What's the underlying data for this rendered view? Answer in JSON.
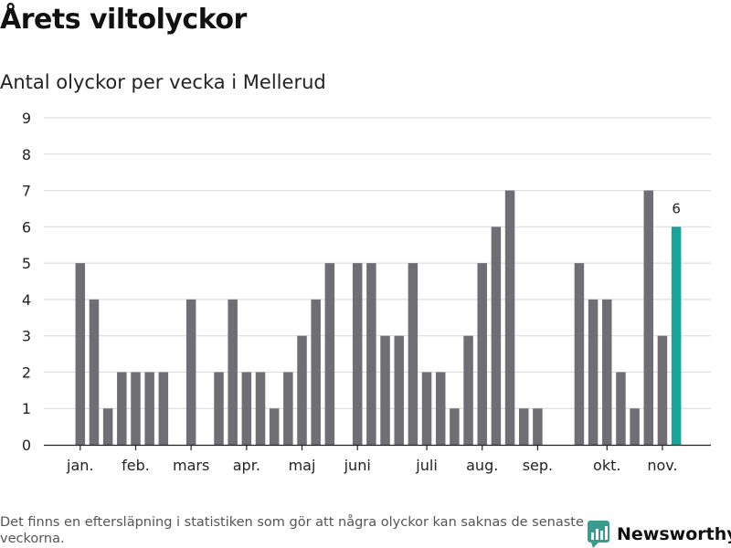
{
  "title": "Årets viltolyckor",
  "subtitle": "Antal olyckor per vecka i Mellerud",
  "footnote": "Det finns en eftersläpning i statistiken som gör att några olyckor kan saknas de senaste veckorna.",
  "brand": {
    "name": "Newsworthy",
    "icon": "newsworthy-bar-icon",
    "color": "#3a9a8e"
  },
  "colors": {
    "bar": "#6f6e74",
    "highlight": "#1aa39a",
    "grid": "#dddddd",
    "axis": "#222222"
  },
  "chart_data": {
    "type": "bar",
    "title": "Årets viltolyckor",
    "subtitle": "Antal olyckor per vecka i Mellerud",
    "xlabel": "",
    "ylabel": "",
    "ylim": [
      0,
      9
    ],
    "yticks": [
      0,
      1,
      2,
      3,
      4,
      5,
      6,
      7,
      8,
      9
    ],
    "grid": true,
    "x": [
      1,
      2,
      3,
      4,
      5,
      6,
      7,
      8,
      9,
      10,
      11,
      12,
      13,
      14,
      15,
      16,
      17,
      18,
      19,
      20,
      21,
      22,
      23,
      24,
      25,
      26,
      27,
      28,
      29,
      30,
      31,
      32,
      33,
      34,
      35,
      36,
      37,
      38,
      39,
      40,
      41,
      42,
      43,
      44
    ],
    "values": [
      5,
      4,
      1,
      2,
      2,
      2,
      2,
      0,
      4,
      0,
      2,
      4,
      2,
      2,
      1,
      2,
      3,
      4,
      5,
      0,
      5,
      5,
      3,
      3,
      5,
      2,
      2,
      1,
      3,
      5,
      6,
      7,
      1,
      1,
      0,
      0,
      5,
      4,
      4,
      2,
      1,
      7,
      3,
      6
    ],
    "highlight_index": 43,
    "data_labels": [
      {
        "index": 43,
        "text": "6"
      }
    ],
    "month_labels": [
      {
        "label": "jan.",
        "x": 1
      },
      {
        "label": "feb.",
        "x": 5
      },
      {
        "label": "mars",
        "x": 9
      },
      {
        "label": "apr.",
        "x": 13
      },
      {
        "label": "maj",
        "x": 17
      },
      {
        "label": "juni",
        "x": 21
      },
      {
        "label": "juli",
        "x": 26
      },
      {
        "label": "aug.",
        "x": 30
      },
      {
        "label": "sep.",
        "x": 34
      },
      {
        "label": "okt.",
        "x": 39
      },
      {
        "label": "nov.",
        "x": 43
      }
    ]
  }
}
